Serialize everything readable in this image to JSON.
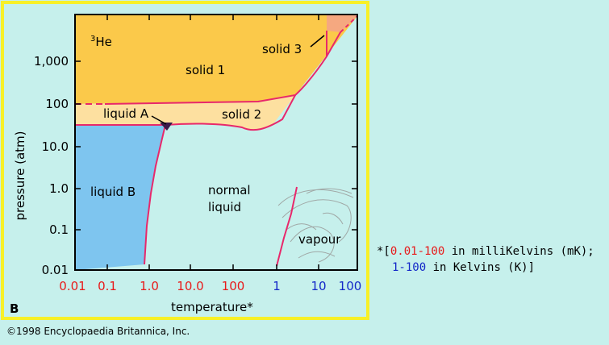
{
  "diagram": {
    "isotope_label_sup": "3",
    "isotope_label_base": "He",
    "panel_letter": "B",
    "x_axis_label": "temperature",
    "x_axis_star": "*",
    "y_axis_label": "pressure (atm)",
    "x_ticks": [
      "0.01",
      "0.1",
      "1.0",
      "10.0",
      "100",
      "1",
      "10",
      "100"
    ],
    "y_ticks": [
      "1,000",
      "100",
      "10.0",
      "1.0",
      "0.1",
      "0.01"
    ],
    "region_labels": {
      "solid1": "solid 1",
      "solid2": "solid 2",
      "solid3": "solid 3",
      "liquidA": "liquid A",
      "liquidB": "liquid B",
      "normal_liquid_1": "normal",
      "normal_liquid_2": "liquid",
      "vapour": "vapour"
    },
    "colors": {
      "solid": "#fbc94a",
      "solid2": "#fde0a0",
      "liquidB": "#7ec5ef",
      "normal": "#c6f0ec",
      "solid3": "#f5a880",
      "curve": "#e8286b",
      "border": "#f7f028",
      "mK": "#e81a1a",
      "K": "#1428c8"
    }
  },
  "footnote": {
    "line1_prefix": "*[",
    "line1_red": "0.01-100",
    "line1_rest": " in milliKelvins (mK);",
    "line2_blue": "1-100",
    "line2_rest": " in Kelvins (K)]"
  },
  "copyright": "©1998 Encyclopaedia Britannica, Inc."
}
